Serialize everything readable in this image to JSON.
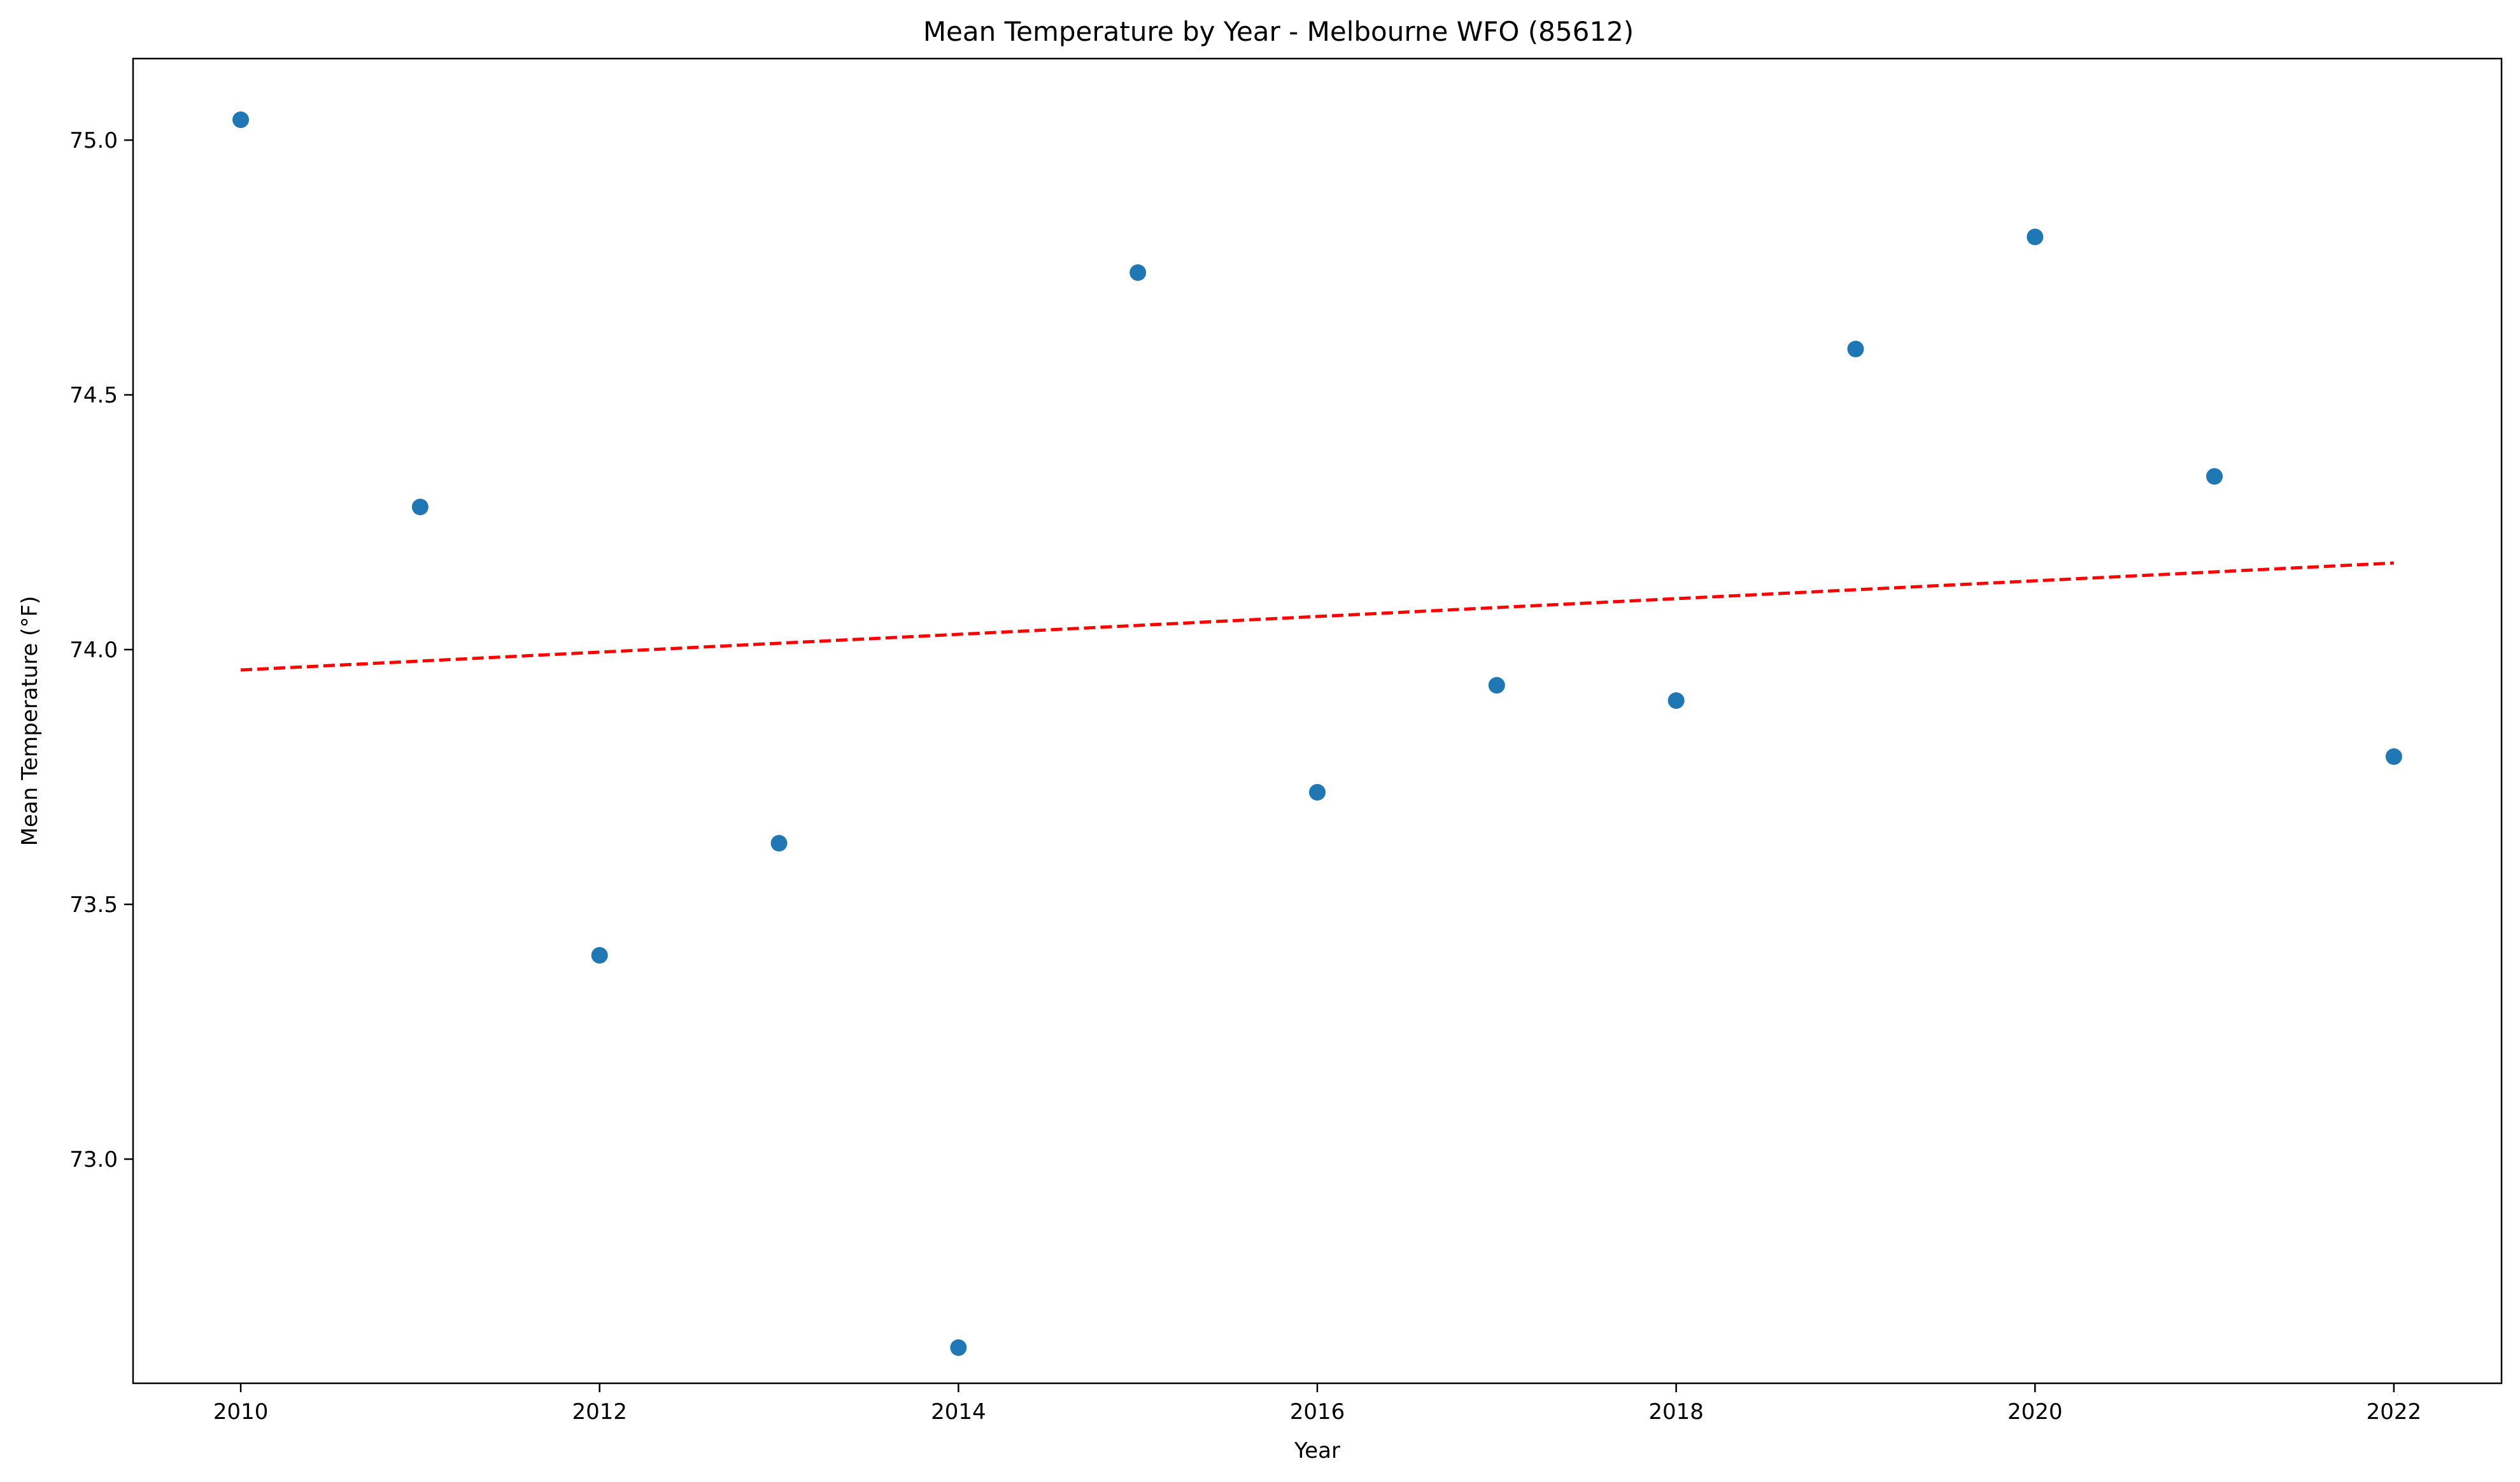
{
  "chart_data": {
    "type": "scatter",
    "title": "Mean Temperature by Year - Melbourne WFO (85612)",
    "xlabel": "Year",
    "ylabel": "Mean Temperature (°F)",
    "xlim": [
      2009.4,
      2022.6
    ],
    "ylim": [
      72.56,
      75.16
    ],
    "xticks": [
      2010,
      2012,
      2014,
      2016,
      2018,
      2020,
      2022
    ],
    "yticks": [
      73.0,
      73.5,
      74.0,
      74.5,
      75.0
    ],
    "ytick_labels": [
      "73.0",
      "73.5",
      "74.0",
      "74.5",
      "75.0"
    ],
    "grid": false,
    "series": [
      {
        "x": [
          2010,
          2011,
          2012,
          2013,
          2014,
          2015,
          2016,
          2017,
          2018,
          2019,
          2020,
          2021,
          2022
        ],
        "y": [
          75.04,
          74.28,
          73.4,
          73.62,
          72.63,
          74.74,
          73.72,
          73.93,
          73.9,
          74.59,
          74.81,
          74.34,
          73.79
        ],
        "color": "#1f77b4"
      }
    ],
    "trendline": {
      "x": [
        2010,
        2022
      ],
      "y": [
        73.96,
        74.17
      ],
      "color": "#ff0000",
      "style": "dashed"
    }
  }
}
